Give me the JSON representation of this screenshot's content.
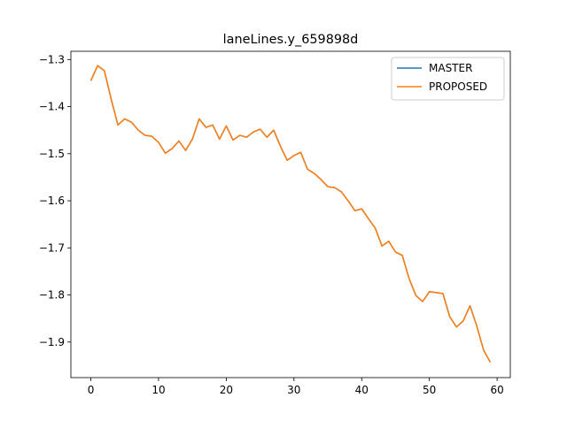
{
  "chart_data": {
    "type": "line",
    "title": "laneLines.y_659898d",
    "x": [
      0,
      1,
      2,
      3,
      4,
      5,
      6,
      7,
      8,
      9,
      10,
      11,
      12,
      13,
      14,
      15,
      16,
      17,
      18,
      19,
      20,
      21,
      22,
      23,
      24,
      25,
      26,
      27,
      28,
      29,
      30,
      31,
      32,
      33,
      34,
      35,
      36,
      37,
      38,
      39,
      40,
      41,
      42,
      43,
      44,
      45,
      46,
      47,
      48,
      49,
      50,
      51,
      52,
      53,
      54,
      55,
      56,
      57,
      58,
      59
    ],
    "series": [
      {
        "name": "MASTER",
        "color": "#1f77b4",
        "values": [
          -1.345,
          -1.313,
          -1.324,
          -1.384,
          -1.439,
          -1.426,
          -1.433,
          -1.45,
          -1.461,
          -1.463,
          -1.476,
          -1.499,
          -1.489,
          -1.473,
          -1.493,
          -1.469,
          -1.426,
          -1.444,
          -1.439,
          -1.469,
          -1.441,
          -1.471,
          -1.461,
          -1.465,
          -1.454,
          -1.448,
          -1.465,
          -1.45,
          -1.484,
          -1.514,
          -1.504,
          -1.497,
          -1.533,
          -1.542,
          -1.555,
          -1.57,
          -1.572,
          -1.581,
          -1.6,
          -1.621,
          -1.617,
          -1.638,
          -1.658,
          -1.696,
          -1.686,
          -1.709,
          -1.716,
          -1.765,
          -1.801,
          -1.814,
          -1.793,
          -1.795,
          -1.797,
          -1.846,
          -1.868,
          -1.855,
          -1.823,
          -1.866,
          -1.917,
          -1.943
        ]
      },
      {
        "name": "PROPOSED",
        "color": "#ff7f0e",
        "values": [
          -1.345,
          -1.313,
          -1.324,
          -1.384,
          -1.439,
          -1.426,
          -1.433,
          -1.45,
          -1.461,
          -1.463,
          -1.476,
          -1.499,
          -1.489,
          -1.473,
          -1.493,
          -1.469,
          -1.426,
          -1.444,
          -1.439,
          -1.469,
          -1.441,
          -1.471,
          -1.461,
          -1.465,
          -1.454,
          -1.448,
          -1.465,
          -1.45,
          -1.484,
          -1.514,
          -1.504,
          -1.497,
          -1.533,
          -1.542,
          -1.555,
          -1.57,
          -1.572,
          -1.581,
          -1.6,
          -1.621,
          -1.617,
          -1.638,
          -1.658,
          -1.696,
          -1.686,
          -1.709,
          -1.716,
          -1.765,
          -1.801,
          -1.814,
          -1.793,
          -1.795,
          -1.797,
          -1.846,
          -1.868,
          -1.855,
          -1.823,
          -1.866,
          -1.917,
          -1.943
        ]
      }
    ],
    "xlim": [
      -2.95,
      61.95
    ],
    "xticks": [
      0,
      10,
      20,
      30,
      40,
      50,
      60
    ],
    "ylim": [
      -1.9755,
      -1.2825
    ],
    "yticks": [
      {
        "value": -1.9,
        "label": "−1.9"
      },
      {
        "value": -1.8,
        "label": "−1.8"
      },
      {
        "value": -1.7,
        "label": "−1.7"
      },
      {
        "value": -1.6,
        "label": "−1.6"
      },
      {
        "value": -1.5,
        "label": "−1.5"
      },
      {
        "value": -1.4,
        "label": "−1.4"
      },
      {
        "value": -1.3,
        "label": "−1.3"
      }
    ],
    "legend": "upper right"
  }
}
